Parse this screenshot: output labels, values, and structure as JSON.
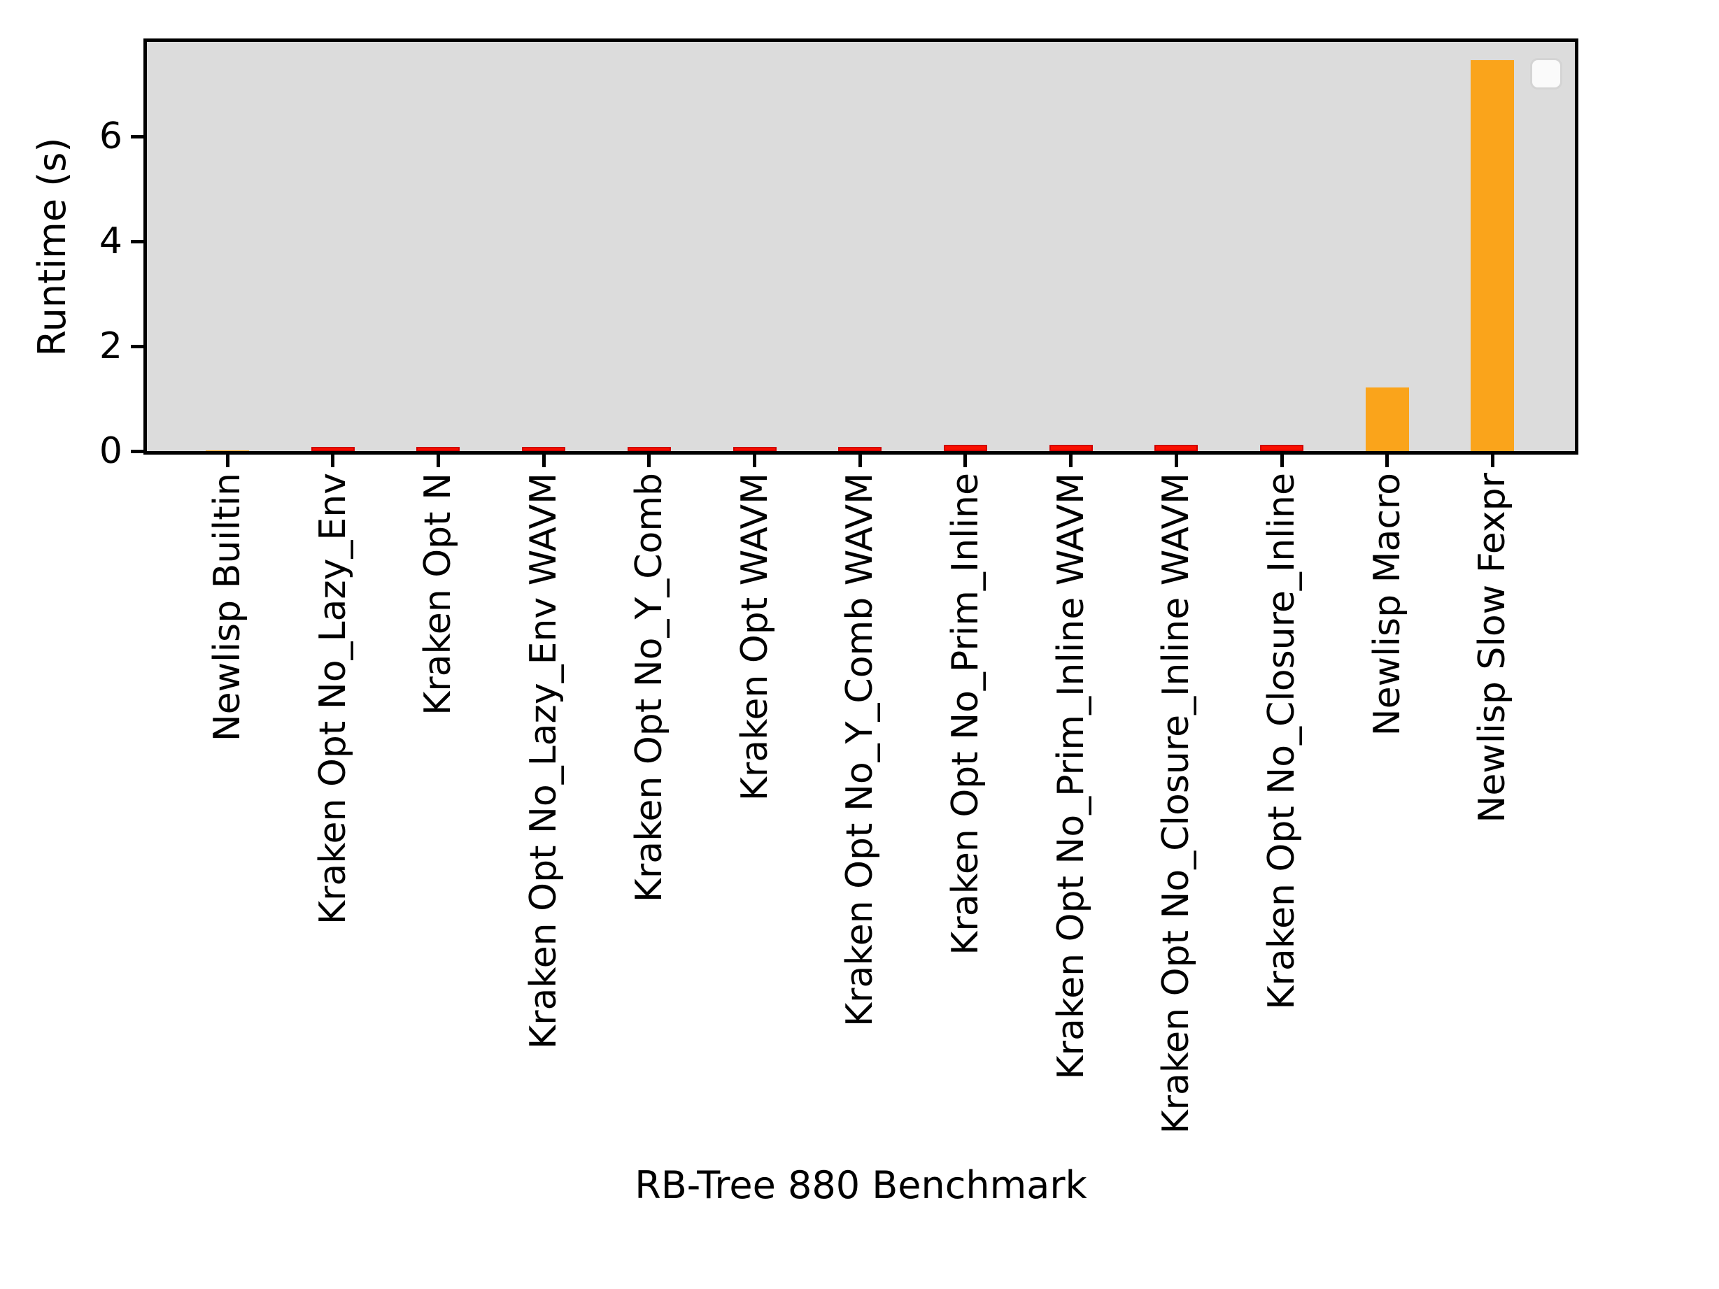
{
  "chart_data": {
    "type": "bar",
    "title": "",
    "xlabel": "RB-Tree 880 Benchmark",
    "ylabel": "Runtime (s)",
    "categories": [
      "Newlisp Builtin",
      "Kraken Opt No_Lazy_Env",
      "Kraken Opt N",
      "Kraken Opt No_Lazy_Env WAVM",
      "Kraken Opt No_Y_Comb",
      "Kraken Opt WAVM",
      "Kraken Opt No_Y_Comb WAVM",
      "Kraken Opt No_Prim_Inline",
      "Kraken Opt No_Prim_Inline WAVM",
      "Kraken Opt No_Closure_Inline WAVM",
      "Kraken Opt No_Closure_Inline",
      "Newlisp Macro",
      "Newlisp Slow Fexpr"
    ],
    "values": [
      0.02,
      0.08,
      0.08,
      0.08,
      0.08,
      0.08,
      0.08,
      0.12,
      0.12,
      0.12,
      0.12,
      1.21,
      7.45
    ],
    "bar_color_keys": [
      "orange",
      "red",
      "red",
      "red",
      "red",
      "red",
      "red",
      "red",
      "red",
      "red",
      "red",
      "orange",
      "orange"
    ],
    "colors": {
      "red": "#fa1000",
      "red_edge": "#d00000",
      "orange": "#faa41b",
      "plot_background": "#dcdcdc",
      "axis": "#000000",
      "legend_fill": "#fafafa",
      "legend_border": "#d4d4d4"
    },
    "yticks": [
      0,
      2,
      4,
      6
    ],
    "ylim": [
      0,
      7.87
    ],
    "grid": false,
    "legend": {
      "visible": true,
      "position": "upper right",
      "entries": []
    },
    "x_tick_label_rotation": 90
  }
}
